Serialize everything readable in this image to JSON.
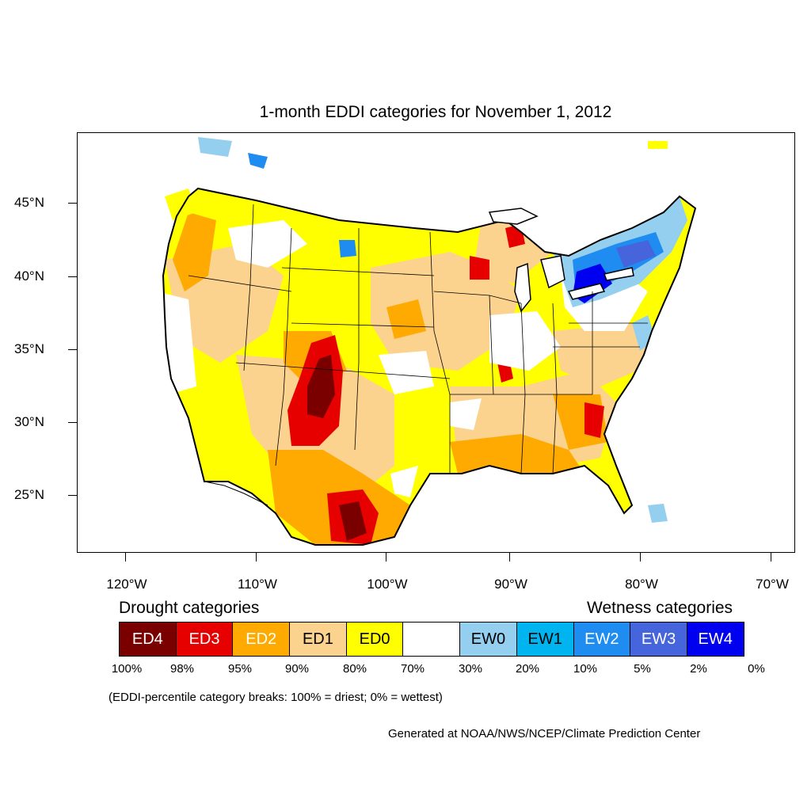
{
  "title": "1-month EDDI categories for November 1, 2012",
  "map": {
    "lat_labels": [
      "45°N",
      "40°N",
      "35°N",
      "30°N",
      "25°N"
    ],
    "lon_labels": [
      "120°W",
      "110°W",
      "100°W",
      "90°W",
      "80°W",
      "70°W"
    ]
  },
  "legend": {
    "drought_heading": "Drought categories",
    "wetness_heading": "Wetness categories",
    "categories": [
      {
        "label": "ED4",
        "color": "#7a0000",
        "text_color": "#ffffff"
      },
      {
        "label": "ED3",
        "color": "#e60000",
        "text_color": "#ffffff"
      },
      {
        "label": "ED2",
        "color": "#ffaa00",
        "text_color": "#ffffff"
      },
      {
        "label": "ED1",
        "color": "#fcd28f",
        "text_color": "#000000"
      },
      {
        "label": "ED0",
        "color": "#ffff00",
        "text_color": "#000000"
      },
      {
        "label": "",
        "color": "#ffffff",
        "text_color": "#000000"
      },
      {
        "label": "EW0",
        "color": "#94cfef",
        "text_color": "#000000"
      },
      {
        "label": "EW1",
        "color": "#00b4f0",
        "text_color": "#000000"
      },
      {
        "label": "EW2",
        "color": "#1e8cf0",
        "text_color": "#ffffff"
      },
      {
        "label": "EW3",
        "color": "#4664dc",
        "text_color": "#ffffff"
      },
      {
        "label": "EW4",
        "color": "#0000f0",
        "text_color": "#ffffff"
      }
    ],
    "breaks": [
      "100%",
      "98%",
      "95%",
      "90%",
      "80%",
      "70%",
      "30%",
      "20%",
      "10%",
      "5%",
      "2%",
      "0%"
    ]
  },
  "note": "(EDDI-percentile category breaks: 100% = driest; 0% = wettest)",
  "credit": "Generated at NOAA/NWS/NCEP/Climate Prediction Center"
}
